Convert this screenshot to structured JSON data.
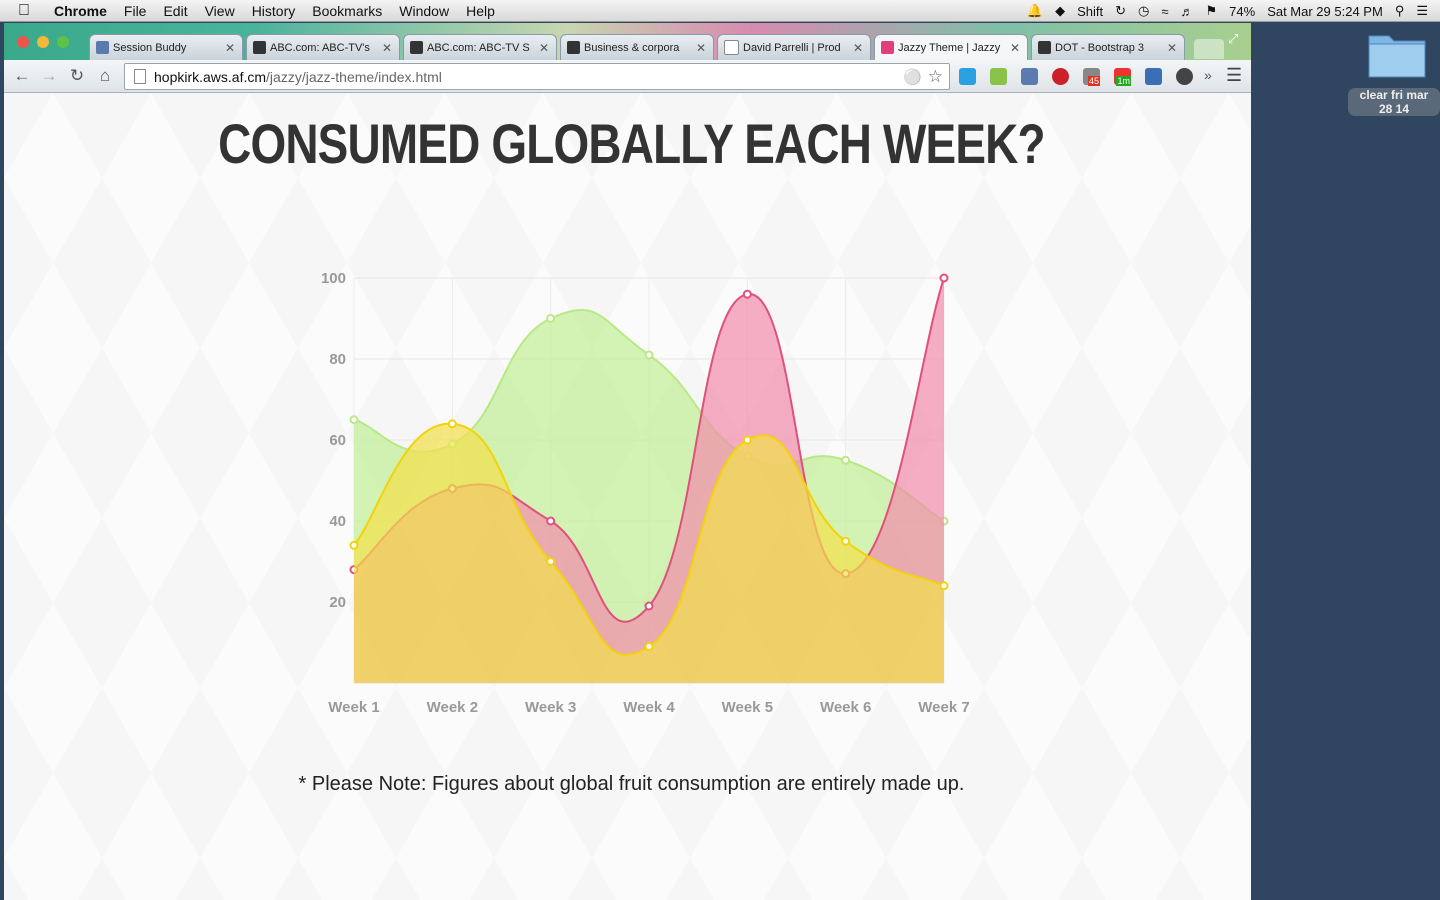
{
  "menubar": {
    "app_name": "Chrome",
    "menus": [
      "File",
      "Edit",
      "View",
      "History",
      "Bookmarks",
      "Window",
      "Help"
    ],
    "status": {
      "input_source": "Shift",
      "battery": "74%",
      "datetime": "Sat Mar 29  5:24 PM"
    }
  },
  "browser": {
    "tabs": [
      {
        "label": "Session Buddy",
        "active": false
      },
      {
        "label": "ABC.com: ABC-TV's",
        "active": false
      },
      {
        "label": "ABC.com: ABC-TV S",
        "active": false
      },
      {
        "label": "Business & corpora",
        "active": false
      },
      {
        "label": "David Parrelli | Prod",
        "active": false
      },
      {
        "label": "Jazzy Theme | Jazzy",
        "active": true
      },
      {
        "label": "DOT - Bootstrap 3",
        "active": false
      }
    ],
    "url_host": "hopkirk.aws.af.cm",
    "url_path": "/jazzy/jazz-theme/index.html",
    "extension_badges": [
      "45",
      "1m"
    ]
  },
  "page": {
    "heading": "CONSUMED GLOBALLY EACH WEEK?",
    "note": "* Please Note: Figures about global fruit consumption are entirely made up."
  },
  "desktop": {
    "folder_label_line1": "clear fri mar",
    "folder_label_line2": "28 14"
  },
  "colors": {
    "series_green": "#c8f0a0",
    "series_pink": "#f48fb1",
    "series_yellow": "#f0e040",
    "series_orange": "#f0b84a"
  },
  "chart_data": {
    "type": "area",
    "categories": [
      "Week 1",
      "Week 2",
      "Week 3",
      "Week 4",
      "Week 5",
      "Week 6",
      "Week 7"
    ],
    "ylim": [
      0,
      100
    ],
    "yticks": [
      20,
      40,
      60,
      80,
      100
    ],
    "series": [
      {
        "values": [
          65,
          59,
          90,
          81,
          56,
          55,
          40
        ],
        "color": "#c2ef96",
        "stroke": "#b8e986"
      },
      {
        "values": [
          28,
          48,
          40,
          19,
          96,
          27,
          100
        ],
        "color": "#f28bab",
        "stroke": "#e0507f"
      },
      {
        "values": [
          34,
          64,
          30,
          9,
          60,
          35,
          24
        ],
        "color": "#f2e04a",
        "stroke": "#f2d30a"
      }
    ],
    "grid": true
  }
}
